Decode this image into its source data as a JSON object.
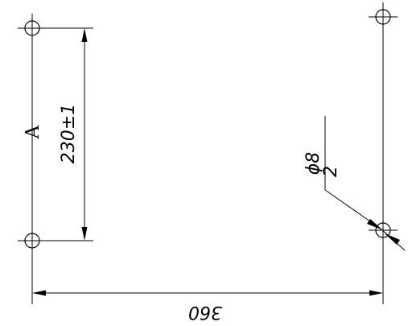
{
  "drawing": {
    "view_label": "A",
    "height_dimension": "230±1",
    "width_dimension": "360",
    "hole_diameter": "ϕ8",
    "hole_count": "2"
  },
  "colors": {
    "ink": "#000000",
    "paper": "#ffffff"
  },
  "icons": {
    "hole": "circle-crosshair-icon"
  }
}
